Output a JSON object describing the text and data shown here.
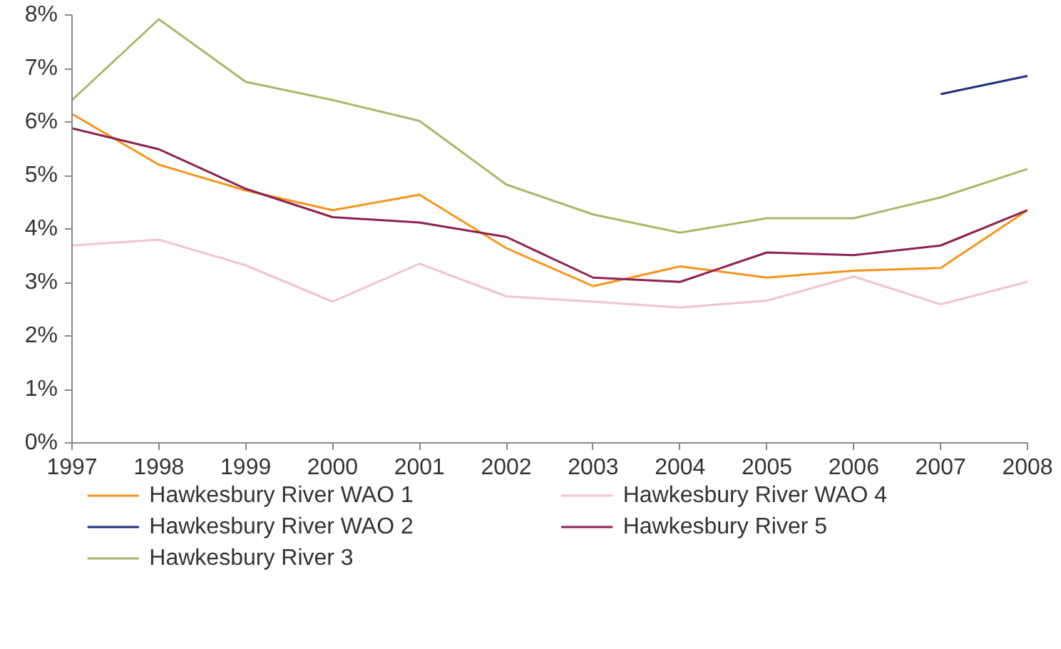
{
  "chart_data": {
    "type": "line",
    "x": [
      1997,
      1998,
      1999,
      2000,
      2001,
      2002,
      2003,
      2004,
      2005,
      2006,
      2007,
      2008
    ],
    "series": [
      {
        "name": "Hawkesbury River WAO 1",
        "color": "#f7941d",
        "values": [
          6.15,
          5.2,
          4.72,
          4.35,
          4.64,
          3.64,
          2.93,
          3.3,
          3.09,
          3.22,
          3.27,
          4.35
        ]
      },
      {
        "name": "Hawkesbury River WAO 2",
        "color": "#1f2d7b",
        "values": [
          null,
          null,
          null,
          null,
          null,
          null,
          null,
          null,
          null,
          null,
          6.52,
          6.86
        ]
      },
      {
        "name": "Hawkesbury River 3",
        "color": "#a9b86a",
        "values": [
          6.41,
          7.92,
          6.75,
          6.41,
          6.02,
          4.83,
          4.27,
          3.93,
          4.2,
          4.2,
          4.59,
          5.12
        ]
      },
      {
        "name": "Hawkesbury River WAO 4",
        "color": "#f2c4cf",
        "values": [
          3.69,
          3.8,
          3.32,
          2.64,
          3.35,
          2.74,
          2.64,
          2.53,
          2.66,
          3.11,
          2.59,
          3.01
        ]
      },
      {
        "name": "Hawkesbury River 5",
        "color": "#8b2252",
        "values": [
          5.88,
          5.49,
          4.75,
          4.22,
          4.12,
          3.85,
          3.09,
          3.01,
          3.56,
          3.51,
          3.69,
          4.35
        ]
      }
    ],
    "xlim": [
      1997,
      2008
    ],
    "xticks": [
      1997,
      1998,
      1999,
      2000,
      2001,
      2002,
      2003,
      2004,
      2005,
      2006,
      2007,
      2008
    ],
    "ylim": [
      0,
      8
    ],
    "yticks": [
      {
        "value": 0,
        "label": "0%"
      },
      {
        "value": 1,
        "label": "1%"
      },
      {
        "value": 2,
        "label": "2%"
      },
      {
        "value": 3,
        "label": "3%"
      },
      {
        "value": 4,
        "label": "4%"
      },
      {
        "value": 5,
        "label": "5%"
      },
      {
        "value": 6,
        "label": "6%"
      },
      {
        "value": 7,
        "label": "7%"
      },
      {
        "value": 8,
        "label": "8%"
      }
    ],
    "grid": false,
    "legend": "bottom",
    "marker": "none",
    "line_style": "solid"
  }
}
